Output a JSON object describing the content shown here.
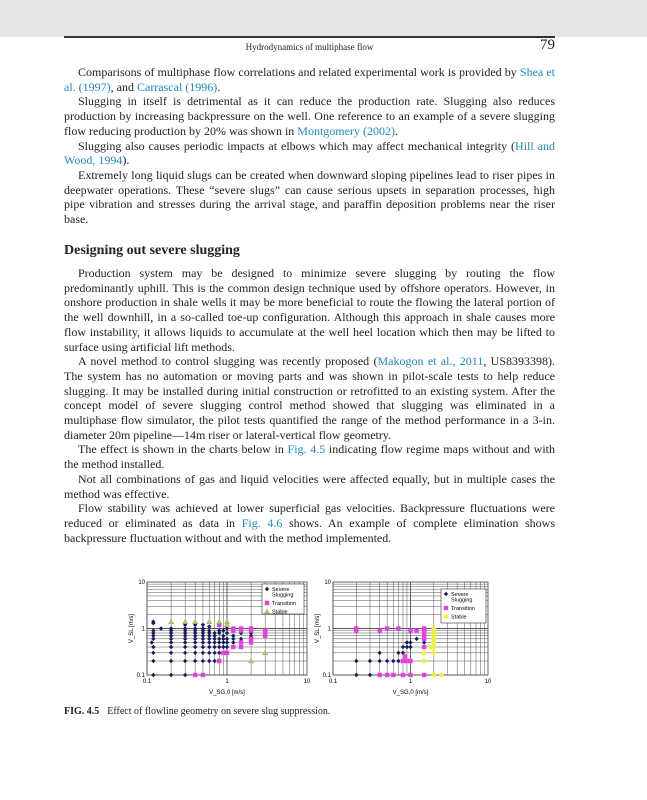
{
  "header": {
    "running_title": "Hydrodynamics of multiphase flow",
    "page_number": "79"
  },
  "section1": {
    "paragraphs": [
      [
        {
          "t": "Comparisons of multiphase flow correlations and related experimental work is provided by "
        },
        {
          "t": "Shea et al. (1997)",
          "link": true
        },
        {
          "t": ", and "
        },
        {
          "t": "Carrascal (1996)",
          "link": true
        },
        {
          "t": "."
        }
      ],
      [
        {
          "t": "Slugging in itself is detrimental as it can reduce the production rate. Slugging also reduces production by increasing backpressure on the well. One reference to an example of a severe slugging flow reducing production by 20% was shown in "
        },
        {
          "t": "Montgomery (2002)",
          "link": true
        },
        {
          "t": "."
        }
      ],
      [
        {
          "t": "Slugging also causes periodic impacts at elbows which may affect mechanical integrity ("
        },
        {
          "t": "Hill and Wood, 1994",
          "link": true
        },
        {
          "t": ")."
        }
      ],
      [
        {
          "t": "Extremely long liquid slugs can be created when downward sloping pipelines lead to riser pipes in deepwater operations. These “severe slugs” can cause serious upsets in separation processes, high pipe vibration and stresses during the arrival stage, and paraffin deposition problems near the riser base."
        }
      ]
    ]
  },
  "section2": {
    "heading": "Designing out severe slugging",
    "paragraphs": [
      [
        {
          "t": "Production system may be designed to minimize severe slugging by routing the flow predominantly uphill. This is the common design technique used by offshore operators. However, in onshore production in shale wells it may be more beneficial to route the flowing the lateral portion of the well downhill, in a so-called toe-up configuration. Although this approach in shale causes more flow instability, it allows liquids to accumulate at the well heel location which then may be lifted to surface using artificial lift methods."
        }
      ],
      [
        {
          "t": "A novel method to control slugging was recently proposed ("
        },
        {
          "t": "Makogon et al., 2011",
          "link": true
        },
        {
          "t": ", US8393398). The system has no automation or moving parts and was shown in pilot-scale tests to help reduce slugging. It may be installed during initial construction or retrofitted to an existing system. After the concept model of severe slugging control method showed that slugging was eliminated in a multiphase flow simulator, the pilot tests quantified the range of the method performance in a 3-in. diameter 20m pipeline—14m riser or lateral-vertical flow geometry."
        }
      ],
      [
        {
          "t": "The effect is shown in the charts below in "
        },
        {
          "t": "Fig. 4.5",
          "link": true
        },
        {
          "t": " indicating flow regime maps without and with the method installed."
        }
      ],
      [
        {
          "t": "Not all combinations of gas and liquid velocities were affected equally, but in multiple cases the method was effective."
        }
      ],
      [
        {
          "t": "Flow stability was achieved at lower superficial gas velocities. Backpressure fluctuations were reduced or eliminated as data in "
        },
        {
          "t": "Fig. 4.6",
          "link": true
        },
        {
          "t": " shows. An example of complete elimination shows backpressure fluctuation without and with the method implemented."
        }
      ]
    ]
  },
  "colors": {
    "link": "#1a8ac0",
    "severe": "#1a1a5e",
    "transition": "#e83ee0",
    "stable_left": "#c8c850",
    "stable_right": "#f0f040"
  },
  "chart_data": [
    {
      "type": "scatter",
      "xlabel": "V_SG,0 [m/s]",
      "ylabel": "V_SL [m/s]",
      "xscale": "log",
      "yscale": "log",
      "xlim": [
        0.1,
        10
      ],
      "ylim": [
        0.1,
        10
      ],
      "xticks": [
        "0.1",
        "1",
        "10"
      ],
      "yticks": [
        "0.1",
        "1",
        "10"
      ],
      "grid": true,
      "legend": "top-right",
      "series": [
        {
          "name": "Severe Slugging",
          "marker": "diamond",
          "points": [
            [
              0.12,
              0.1
            ],
            [
              0.12,
              0.2
            ],
            [
              0.12,
              0.3
            ],
            [
              0.12,
              0.4
            ],
            [
              0.115,
              0.5
            ],
            [
              0.12,
              0.6
            ],
            [
              0.12,
              0.7
            ],
            [
              0.12,
              0.8
            ],
            [
              0.12,
              0.9
            ],
            [
              0.12,
              1.3
            ],
            [
              0.12,
              1.4
            ],
            [
              0.15,
              1.0
            ],
            [
              0.2,
              0.1
            ],
            [
              0.2,
              0.2
            ],
            [
              0.2,
              0.3
            ],
            [
              0.2,
              0.4
            ],
            [
              0.2,
              0.5
            ],
            [
              0.2,
              0.6
            ],
            [
              0.2,
              0.7
            ],
            [
              0.2,
              0.8
            ],
            [
              0.2,
              0.9
            ],
            [
              0.2,
              1.0
            ],
            [
              0.3,
              0.1
            ],
            [
              0.3,
              0.2
            ],
            [
              0.3,
              0.3
            ],
            [
              0.3,
              0.4
            ],
            [
              0.3,
              0.5
            ],
            [
              0.3,
              0.6
            ],
            [
              0.3,
              0.7
            ],
            [
              0.3,
              0.8
            ],
            [
              0.3,
              0.9
            ],
            [
              0.3,
              1.0
            ],
            [
              0.3,
              1.2
            ],
            [
              0.4,
              0.2
            ],
            [
              0.4,
              0.3
            ],
            [
              0.4,
              0.4
            ],
            [
              0.4,
              0.5
            ],
            [
              0.4,
              0.6
            ],
            [
              0.4,
              0.7
            ],
            [
              0.4,
              0.8
            ],
            [
              0.4,
              0.9
            ],
            [
              0.4,
              1.0
            ],
            [
              0.4,
              1.2
            ],
            [
              0.5,
              0.2
            ],
            [
              0.5,
              0.3
            ],
            [
              0.5,
              0.4
            ],
            [
              0.5,
              0.5
            ],
            [
              0.5,
              0.6
            ],
            [
              0.5,
              0.7
            ],
            [
              0.5,
              0.8
            ],
            [
              0.5,
              0.9
            ],
            [
              0.5,
              1.0
            ],
            [
              0.5,
              1.2
            ],
            [
              0.6,
              0.2
            ],
            [
              0.6,
              0.3
            ],
            [
              0.6,
              0.4
            ],
            [
              0.6,
              0.5
            ],
            [
              0.6,
              0.6
            ],
            [
              0.6,
              0.7
            ],
            [
              0.6,
              0.8
            ],
            [
              0.6,
              0.9
            ],
            [
              0.6,
              1.1
            ],
            [
              0.7,
              0.2
            ],
            [
              0.7,
              0.3
            ],
            [
              0.7,
              0.4
            ],
            [
              0.7,
              0.5
            ],
            [
              0.7,
              0.6
            ],
            [
              0.7,
              0.7
            ],
            [
              0.7,
              0.8
            ],
            [
              0.8,
              0.3
            ],
            [
              0.8,
              0.4
            ],
            [
              0.8,
              0.5
            ],
            [
              0.8,
              0.6
            ],
            [
              0.8,
              0.8
            ],
            [
              0.8,
              0.9
            ],
            [
              0.9,
              0.4
            ],
            [
              0.9,
              0.5
            ],
            [
              0.9,
              0.6
            ],
            [
              0.9,
              0.7
            ],
            [
              0.9,
              0.9
            ],
            [
              1.0,
              0.4
            ],
            [
              1.0,
              0.5
            ],
            [
              1.0,
              0.6
            ],
            [
              1.0,
              0.8
            ],
            [
              1.0,
              1.0
            ],
            [
              1.2,
              0.5
            ],
            [
              1.2,
              0.6
            ],
            [
              1.2,
              0.7
            ],
            [
              1.5,
              0.6
            ],
            [
              1.5,
              0.8
            ],
            [
              2.0,
              0.7
            ],
            [
              2.0,
              0.8
            ]
          ]
        },
        {
          "name": "Transition",
          "marker": "square",
          "points": [
            [
              0.4,
              0.1
            ],
            [
              0.5,
              0.1
            ],
            [
              0.8,
              0.2
            ],
            [
              0.8,
              1.2
            ],
            [
              0.9,
              0.3
            ],
            [
              1.0,
              0.3
            ],
            [
              1.2,
              0.4
            ],
            [
              1.2,
              0.9
            ],
            [
              1.2,
              1.0
            ],
            [
              1.5,
              0.4
            ],
            [
              1.5,
              0.5
            ],
            [
              1.5,
              0.9
            ],
            [
              1.5,
              1.0
            ],
            [
              2.0,
              0.5
            ],
            [
              2.0,
              0.6
            ],
            [
              2.0,
              0.9
            ],
            [
              2.0,
              1.0
            ],
            [
              3.0,
              0.7
            ],
            [
              3.0,
              0.8
            ],
            [
              3.0,
              0.9
            ]
          ]
        },
        {
          "name": "Stable",
          "marker": "triangle",
          "points": [
            [
              0.2,
              1.4
            ],
            [
              0.3,
              1.4
            ],
            [
              0.4,
              1.4
            ],
            [
              0.6,
              1.4
            ],
            [
              0.8,
              1.4
            ],
            [
              1.0,
              1.4
            ],
            [
              1.0,
              1.2
            ],
            [
              2.0,
              0.2
            ],
            [
              3.0,
              0.3
            ]
          ]
        }
      ]
    },
    {
      "type": "scatter",
      "xlabel": "V_SG,0 [m/s]",
      "ylabel": "V_SL [m/s]",
      "xscale": "log",
      "yscale": "log",
      "xlim": [
        0.1,
        10
      ],
      "ylim": [
        0.1,
        10
      ],
      "xticks": [
        "0.1",
        "1",
        "10"
      ],
      "yticks": [
        "0.1",
        "1",
        "10"
      ],
      "grid": true,
      "legend": "top-right",
      "series": [
        {
          "name": "Severe Slugging",
          "marker": "diamond",
          "points": [
            [
              0.2,
              0.1
            ],
            [
              0.2,
              0.2
            ],
            [
              0.3,
              0.1
            ],
            [
              0.3,
              0.2
            ],
            [
              0.4,
              0.2
            ],
            [
              0.4,
              0.3
            ],
            [
              0.5,
              0.2
            ],
            [
              0.6,
              0.2
            ],
            [
              0.7,
              0.2
            ],
            [
              0.7,
              0.3
            ],
            [
              0.8,
              0.3
            ],
            [
              0.8,
              0.4
            ],
            [
              0.9,
              0.4
            ],
            [
              0.9,
              0.5
            ],
            [
              1.0,
              0.4
            ],
            [
              1.0,
              0.5
            ],
            [
              1.2,
              0.6
            ],
            [
              1.5,
              0.5
            ]
          ]
        },
        {
          "name": "Transition",
          "marker": "square",
          "points": [
            [
              0.2,
              0.9
            ],
            [
              0.2,
              1.0
            ],
            [
              0.4,
              0.1
            ],
            [
              0.4,
              0.9
            ],
            [
              0.5,
              0.1
            ],
            [
              0.5,
              1.0
            ],
            [
              0.6,
              0.1
            ],
            [
              0.7,
              1.0
            ],
            [
              0.8,
              0.1
            ],
            [
              0.8,
              0.2
            ],
            [
              0.85,
              0.25
            ],
            [
              0.9,
              0.2
            ],
            [
              1.0,
              0.1
            ],
            [
              1.0,
              0.2
            ],
            [
              1.0,
              0.9
            ],
            [
              1.2,
              0.9
            ],
            [
              1.5,
              0.1
            ],
            [
              1.5,
              0.4
            ],
            [
              1.5,
              0.6
            ],
            [
              1.5,
              0.7
            ],
            [
              1.5,
              0.8
            ],
            [
              1.5,
              0.9
            ],
            [
              1.5,
              1.0
            ]
          ]
        },
        {
          "name": "Stable",
          "marker": "circle",
          "points": [
            [
              1.5,
              0.2
            ],
            [
              1.5,
              0.3
            ],
            [
              1.8,
              0.4
            ],
            [
              2.0,
              0.1
            ],
            [
              2.0,
              0.3
            ],
            [
              2.0,
              0.4
            ],
            [
              2.0,
              0.5
            ],
            [
              2.0,
              0.6
            ],
            [
              2.0,
              0.7
            ],
            [
              2.0,
              0.8
            ],
            [
              2.0,
              0.9
            ],
            [
              2.0,
              1.0
            ],
            [
              2.5,
              0.1
            ]
          ]
        }
      ]
    }
  ],
  "caption": {
    "label": "FIG. 4.5",
    "text": "Effect of flowline geometry on severe slug suppression."
  }
}
